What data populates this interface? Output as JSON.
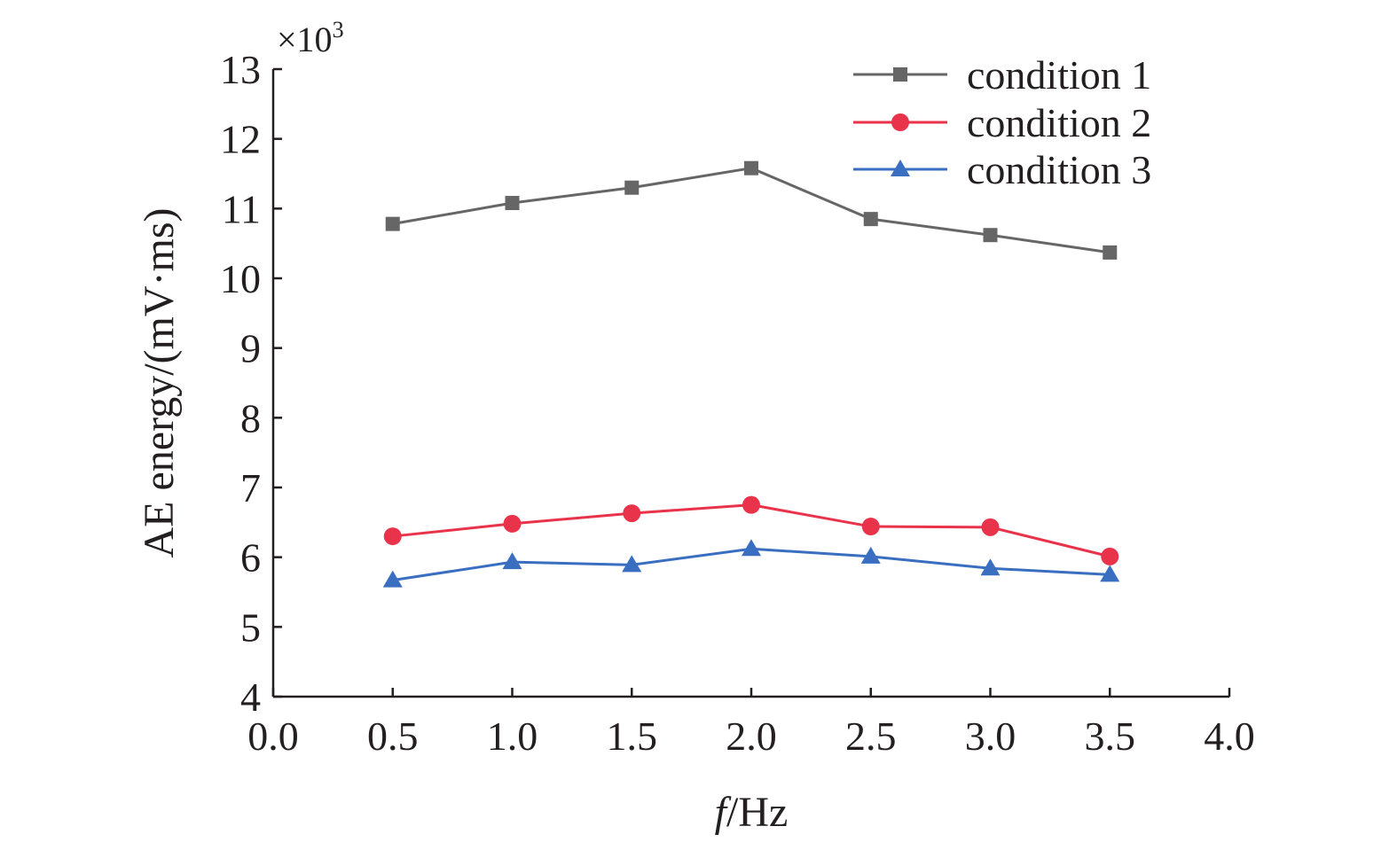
{
  "chart_data": {
    "type": "line",
    "xlabel_italic": "f",
    "xlabel_rest": "/Hz",
    "ylabel": "AE energy/(mV·ms)",
    "y_multiplier_base": "×10",
    "y_multiplier_exp": "3",
    "xlim": [
      0.0,
      4.0
    ],
    "ylim": [
      4,
      13
    ],
    "x_ticks": [
      "0.0",
      "0.5",
      "1.0",
      "1.5",
      "2.0",
      "2.5",
      "3.0",
      "3.5",
      "4.0"
    ],
    "y_ticks": [
      "4",
      "5",
      "6",
      "7",
      "8",
      "9",
      "10",
      "11",
      "12",
      "13"
    ],
    "grid": false,
    "legend_position": "top-right",
    "x": [
      0.5,
      1.0,
      1.5,
      2.0,
      2.5,
      3.0,
      3.5
    ],
    "series": [
      {
        "name": "condition 1",
        "color": "#666666",
        "marker": "square",
        "values": [
          10.78,
          11.08,
          11.3,
          11.58,
          10.85,
          10.62,
          10.37
        ]
      },
      {
        "name": "condition 2",
        "color": "#e8334a",
        "marker": "circle",
        "values": [
          6.3,
          6.48,
          6.63,
          6.75,
          6.44,
          6.43,
          6.01
        ]
      },
      {
        "name": "condition 3",
        "color": "#3a6ec1",
        "marker": "triangle",
        "values": [
          5.67,
          5.93,
          5.89,
          6.12,
          6.01,
          5.84,
          5.75
        ]
      }
    ]
  }
}
